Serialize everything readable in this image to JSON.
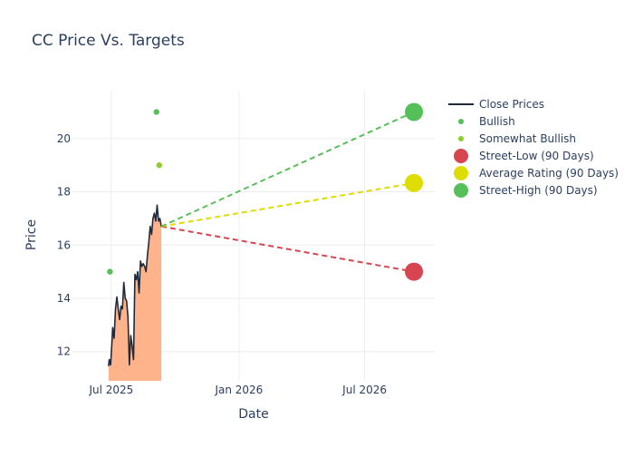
{
  "chart_data": {
    "type": "line",
    "title": "CC Price Vs. Targets",
    "xlabel": "Date",
    "ylabel": "Price",
    "xlim": [
      "2025-05-06",
      "2026-10-10"
    ],
    "ylim": [
      10.9,
      21.8
    ],
    "x_ticks": [
      {
        "date": "2025-07-01",
        "label": "Jul 2025"
      },
      {
        "date": "2026-01-01",
        "label": "Jan 2026"
      },
      {
        "date": "2026-07-01",
        "label": "Jul 2026"
      }
    ],
    "y_ticks": [
      12,
      14,
      16,
      18,
      20
    ],
    "grid": true,
    "legend_position": "right",
    "series": [
      {
        "name": "Close Prices",
        "kind": "line-area",
        "color": "#1f2a3c",
        "fill_color": "#ffb38a",
        "points": [
          [
            "2025-06-27",
            11.45
          ],
          [
            "2025-06-28",
            11.7
          ],
          [
            "2025-06-30",
            11.5
          ],
          [
            "2025-07-02",
            12.4
          ],
          [
            "2025-07-03",
            12.9
          ],
          [
            "2025-07-05",
            12.5
          ],
          [
            "2025-07-07",
            13.6
          ],
          [
            "2025-07-09",
            14.05
          ],
          [
            "2025-07-11",
            13.6
          ],
          [
            "2025-07-13",
            13.2
          ],
          [
            "2025-07-15",
            13.7
          ],
          [
            "2025-07-17",
            13.6
          ],
          [
            "2025-07-19",
            14.6
          ],
          [
            "2025-07-21",
            14.0
          ],
          [
            "2025-07-23",
            13.9
          ],
          [
            "2025-07-25",
            13.3
          ],
          [
            "2025-07-27",
            11.5
          ],
          [
            "2025-07-29",
            12.6
          ],
          [
            "2025-07-31",
            12.2
          ],
          [
            "2025-08-02",
            11.7
          ],
          [
            "2025-08-04",
            14.9
          ],
          [
            "2025-08-06",
            14.7
          ],
          [
            "2025-08-08",
            15.0
          ],
          [
            "2025-08-10",
            14.2
          ],
          [
            "2025-08-12",
            15.4
          ],
          [
            "2025-08-14",
            15.2
          ],
          [
            "2025-08-16",
            15.3
          ],
          [
            "2025-08-18",
            15.2
          ],
          [
            "2025-08-20",
            15.0
          ],
          [
            "2025-08-22",
            15.6
          ],
          [
            "2025-08-24",
            16.1
          ],
          [
            "2025-08-26",
            16.7
          ],
          [
            "2025-08-28",
            16.4
          ],
          [
            "2025-08-30",
            17.0
          ],
          [
            "2025-09-01",
            17.2
          ],
          [
            "2025-09-03",
            16.9
          ],
          [
            "2025-09-05",
            17.5
          ],
          [
            "2025-09-07",
            16.9
          ],
          [
            "2025-09-09",
            17.0
          ],
          [
            "2025-09-11",
            16.7
          ]
        ]
      },
      {
        "name": "Bullish",
        "kind": "markers",
        "color": "#55c057",
        "points": [
          [
            "2025-06-29",
            15.0
          ],
          [
            "2025-09-04",
            21.0
          ]
        ]
      },
      {
        "name": "Somewhat Bullish",
        "kind": "markers",
        "color": "#8bd02a",
        "points": [
          [
            "2025-09-08",
            19.0
          ]
        ]
      },
      {
        "name": "Street-Low (90 Days)",
        "kind": "target",
        "color": "#d64550",
        "points": [
          [
            "2025-09-11",
            16.7
          ],
          [
            "2026-09-10",
            15.0
          ]
        ]
      },
      {
        "name": "Average Rating (90 Days)",
        "kind": "target",
        "color": "#dddd00",
        "points": [
          [
            "2025-09-11",
            16.7
          ],
          [
            "2026-09-10",
            18.33
          ]
        ]
      },
      {
        "name": "Street-High (90 Days)",
        "kind": "target",
        "color": "#55c057",
        "points": [
          [
            "2025-09-11",
            16.7
          ],
          [
            "2026-09-10",
            21.0
          ]
        ]
      }
    ]
  }
}
